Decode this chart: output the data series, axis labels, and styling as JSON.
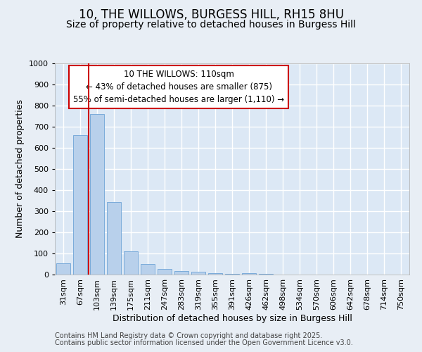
{
  "title1": "10, THE WILLOWS, BURGESS HILL, RH15 8HU",
  "title2": "Size of property relative to detached houses in Burgess Hill",
  "xlabel": "Distribution of detached houses by size in Burgess Hill",
  "ylabel": "Number of detached properties",
  "categories": [
    "31sqm",
    "67sqm",
    "103sqm",
    "139sqm",
    "175sqm",
    "211sqm",
    "247sqm",
    "283sqm",
    "319sqm",
    "355sqm",
    "391sqm",
    "426sqm",
    "462sqm",
    "498sqm",
    "534sqm",
    "570sqm",
    "606sqm",
    "642sqm",
    "678sqm",
    "714sqm",
    "750sqm"
  ],
  "values": [
    55,
    660,
    760,
    345,
    110,
    50,
    28,
    18,
    12,
    8,
    5,
    8,
    5,
    0,
    0,
    0,
    0,
    0,
    0,
    0,
    0
  ],
  "bar_color": "#b8d0eb",
  "bar_edge_color": "#7aabda",
  "vline_color": "#cc0000",
  "vline_x_idx": 2,
  "annotation_text": "10 THE WILLOWS: 110sqm\n← 43% of detached houses are smaller (875)\n55% of semi-detached houses are larger (1,110) →",
  "annotation_box_color": "#ffffff",
  "annotation_box_edge": "#cc0000",
  "ylim": [
    0,
    1000
  ],
  "yticks": [
    0,
    100,
    200,
    300,
    400,
    500,
    600,
    700,
    800,
    900,
    1000
  ],
  "footer1": "Contains HM Land Registry data © Crown copyright and database right 2025.",
  "footer2": "Contains public sector information licensed under the Open Government Licence v3.0.",
  "bg_color": "#e8eef5",
  "plot_bg_color": "#dce8f5",
  "grid_color": "#ffffff",
  "title_fontsize": 12,
  "subtitle_fontsize": 10,
  "tick_fontsize": 8,
  "axis_label_fontsize": 9,
  "footer_fontsize": 7,
  "ylabel_fontsize": 9
}
